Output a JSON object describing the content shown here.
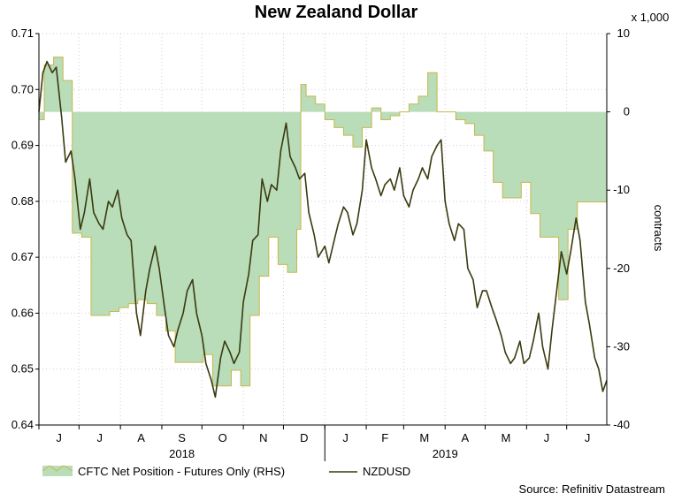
{
  "chart_data": {
    "type": "line",
    "title": "New Zealand Dollar",
    "y_left_ticks": [
      0.64,
      0.65,
      0.66,
      0.67,
      0.68,
      0.69,
      0.7,
      0.71
    ],
    "y_left_labels": [
      "0.64",
      "0.65",
      "0.66",
      "0.67",
      "0.68",
      "0.69",
      "0.70",
      "0.71"
    ],
    "ylim_left": [
      0.64,
      0.71
    ],
    "y_right_ticks": [
      -40,
      -30,
      -20,
      -10,
      0,
      10
    ],
    "y_right_labels": [
      "-40",
      "-30",
      "-20",
      "-10",
      "0",
      "10"
    ],
    "ylim_right": [
      -40,
      10
    ],
    "y_right_unit": "x 1,000",
    "y_right_label": "contracts",
    "x_start": "2018-06-01",
    "x_end": "2019-07-31",
    "month_ticks": [
      "2018-06-01",
      "2018-07-01",
      "2018-08-01",
      "2018-09-01",
      "2018-10-01",
      "2018-11-01",
      "2018-12-01",
      "2019-01-01",
      "2019-02-01",
      "2019-03-01",
      "2019-04-01",
      "2019-05-01",
      "2019-06-01",
      "2019-07-01",
      "2019-08-01"
    ],
    "month_labels": [
      "J",
      "J",
      "A",
      "S",
      "O",
      "N",
      "D",
      "J",
      "F",
      "M",
      "A",
      "M",
      "J",
      "J"
    ],
    "year_labels": [
      {
        "label": "2018",
        "center": "2018-09-16"
      },
      {
        "label": "2019",
        "center": "2019-04-01"
      }
    ],
    "legend": [
      "CFTC Net Position - Futures Only (RHS)",
      "NZDUSD"
    ],
    "source": "Source: Refinitiv Datastream",
    "series": [
      {
        "name": "CFTC Net Position - Futures Only (RHS)",
        "axis": "right",
        "style": "area-step",
        "color": "#b9dcb9",
        "stroke": "#c8b84a",
        "points": [
          [
            "2018-06-01",
            -1
          ],
          [
            "2018-06-05",
            6
          ],
          [
            "2018-06-12",
            7
          ],
          [
            "2018-06-19",
            4
          ],
          [
            "2018-06-26",
            -15.5
          ],
          [
            "2018-07-03",
            -16
          ],
          [
            "2018-07-10",
            -26
          ],
          [
            "2018-07-17",
            -26
          ],
          [
            "2018-07-24",
            -25.5
          ],
          [
            "2018-07-31",
            -25
          ],
          [
            "2018-08-07",
            -24.5
          ],
          [
            "2018-08-14",
            -24
          ],
          [
            "2018-08-21",
            -24.5
          ],
          [
            "2018-08-28",
            -26
          ],
          [
            "2018-09-04",
            -28
          ],
          [
            "2018-09-11",
            -32
          ],
          [
            "2018-09-18",
            -32
          ],
          [
            "2018-09-25",
            -32
          ],
          [
            "2018-10-02",
            -31
          ],
          [
            "2018-10-09",
            -35
          ],
          [
            "2018-10-16",
            -35
          ],
          [
            "2018-10-23",
            -33
          ],
          [
            "2018-10-30",
            -35
          ],
          [
            "2018-11-06",
            -26
          ],
          [
            "2018-11-13",
            -21
          ],
          [
            "2018-11-20",
            -16
          ],
          [
            "2018-11-27",
            -19.5
          ],
          [
            "2018-12-04",
            -20.5
          ],
          [
            "2018-12-11",
            -15
          ],
          [
            "2018-12-14",
            3.5
          ],
          [
            "2018-12-18",
            2
          ],
          [
            "2018-12-25",
            1
          ],
          [
            "2019-01-01",
            -1
          ],
          [
            "2019-01-08",
            -2
          ],
          [
            "2019-01-15",
            -3
          ],
          [
            "2019-01-22",
            -4.5
          ],
          [
            "2019-01-29",
            -2
          ],
          [
            "2019-02-05",
            0.5
          ],
          [
            "2019-02-12",
            -1
          ],
          [
            "2019-02-19",
            -0.5
          ],
          [
            "2019-02-26",
            0
          ],
          [
            "2019-03-05",
            1
          ],
          [
            "2019-03-12",
            2
          ],
          [
            "2019-03-19",
            5
          ],
          [
            "2019-03-26",
            0
          ],
          [
            "2019-04-02",
            0
          ],
          [
            "2019-04-09",
            -1
          ],
          [
            "2019-04-16",
            -1.5
          ],
          [
            "2019-04-23",
            -3
          ],
          [
            "2019-04-30",
            -5
          ],
          [
            "2019-05-07",
            -9
          ],
          [
            "2019-05-14",
            -11
          ],
          [
            "2019-05-21",
            -11
          ],
          [
            "2019-05-28",
            -9
          ],
          [
            "2019-06-04",
            -13
          ],
          [
            "2019-06-11",
            -16
          ],
          [
            "2019-06-18",
            -16
          ],
          [
            "2019-06-25",
            -24
          ],
          [
            "2019-07-02",
            -15
          ],
          [
            "2019-07-09",
            -11.5
          ],
          [
            "2019-07-16",
            -11.5
          ],
          [
            "2019-07-23",
            -11.5
          ],
          [
            "2019-07-31",
            -11
          ]
        ]
      },
      {
        "name": "NZDUSD",
        "axis": "left",
        "style": "line",
        "color": "#3a3a10",
        "points": [
          [
            "2018-06-01",
            0.696
          ],
          [
            "2018-06-04",
            0.703
          ],
          [
            "2018-06-07",
            0.705
          ],
          [
            "2018-06-11",
            0.703
          ],
          [
            "2018-06-14",
            0.704
          ],
          [
            "2018-06-18",
            0.695
          ],
          [
            "2018-06-21",
            0.687
          ],
          [
            "2018-06-25",
            0.689
          ],
          [
            "2018-06-28",
            0.684
          ],
          [
            "2018-07-02",
            0.675
          ],
          [
            "2018-07-05",
            0.678
          ],
          [
            "2018-07-09",
            0.684
          ],
          [
            "2018-07-12",
            0.678
          ],
          [
            "2018-07-16",
            0.676
          ],
          [
            "2018-07-19",
            0.675
          ],
          [
            "2018-07-23",
            0.68
          ],
          [
            "2018-07-26",
            0.679
          ],
          [
            "2018-07-30",
            0.682
          ],
          [
            "2018-08-02",
            0.677
          ],
          [
            "2018-08-06",
            0.674
          ],
          [
            "2018-08-09",
            0.673
          ],
          [
            "2018-08-13",
            0.66
          ],
          [
            "2018-08-16",
            0.656
          ],
          [
            "2018-08-20",
            0.664
          ],
          [
            "2018-08-23",
            0.668
          ],
          [
            "2018-08-27",
            0.672
          ],
          [
            "2018-08-30",
            0.668
          ],
          [
            "2018-09-03",
            0.661
          ],
          [
            "2018-09-06",
            0.656
          ],
          [
            "2018-09-10",
            0.654
          ],
          [
            "2018-09-13",
            0.657
          ],
          [
            "2018-09-17",
            0.66
          ],
          [
            "2018-09-20",
            0.664
          ],
          [
            "2018-09-24",
            0.666
          ],
          [
            "2018-09-27",
            0.66
          ],
          [
            "2018-10-01",
            0.656
          ],
          [
            "2018-10-04",
            0.651
          ],
          [
            "2018-10-08",
            0.648
          ],
          [
            "2018-10-11",
            0.645
          ],
          [
            "2018-10-15",
            0.652
          ],
          [
            "2018-10-18",
            0.655
          ],
          [
            "2018-10-22",
            0.653
          ],
          [
            "2018-10-25",
            0.651
          ],
          [
            "2018-10-29",
            0.653
          ],
          [
            "2018-11-01",
            0.662
          ],
          [
            "2018-11-05",
            0.667
          ],
          [
            "2018-11-08",
            0.673
          ],
          [
            "2018-11-12",
            0.674
          ],
          [
            "2018-11-15",
            0.684
          ],
          [
            "2018-11-19",
            0.68
          ],
          [
            "2018-11-22",
            0.683
          ],
          [
            "2018-11-26",
            0.682
          ],
          [
            "2018-11-29",
            0.689
          ],
          [
            "2018-12-03",
            0.694
          ],
          [
            "2018-12-06",
            0.688
          ],
          [
            "2018-12-10",
            0.686
          ],
          [
            "2018-12-13",
            0.684
          ],
          [
            "2018-12-17",
            0.685
          ],
          [
            "2018-12-20",
            0.678
          ],
          [
            "2018-12-24",
            0.674
          ],
          [
            "2018-12-27",
            0.67
          ],
          [
            "2019-01-01",
            0.672
          ],
          [
            "2019-01-04",
            0.669
          ],
          [
            "2019-01-08",
            0.673
          ],
          [
            "2019-01-11",
            0.676
          ],
          [
            "2019-01-15",
            0.679
          ],
          [
            "2019-01-18",
            0.678
          ],
          [
            "2019-01-22",
            0.674
          ],
          [
            "2019-01-25",
            0.676
          ],
          [
            "2019-01-29",
            0.682
          ],
          [
            "2019-02-01",
            0.691
          ],
          [
            "2019-02-05",
            0.686
          ],
          [
            "2019-02-08",
            0.684
          ],
          [
            "2019-02-12",
            0.681
          ],
          [
            "2019-02-15",
            0.683
          ],
          [
            "2019-02-19",
            0.684
          ],
          [
            "2019-02-22",
            0.682
          ],
          [
            "2019-02-26",
            0.686
          ],
          [
            "2019-03-01",
            0.681
          ],
          [
            "2019-03-05",
            0.679
          ],
          [
            "2019-03-08",
            0.682
          ],
          [
            "2019-03-12",
            0.684
          ],
          [
            "2019-03-15",
            0.686
          ],
          [
            "2019-03-19",
            0.684
          ],
          [
            "2019-03-22",
            0.688
          ],
          [
            "2019-03-26",
            0.69
          ],
          [
            "2019-03-29",
            0.691
          ],
          [
            "2019-04-01",
            0.68
          ],
          [
            "2019-04-04",
            0.676
          ],
          [
            "2019-04-08",
            0.673
          ],
          [
            "2019-04-11",
            0.676
          ],
          [
            "2019-04-15",
            0.675
          ],
          [
            "2019-04-18",
            0.668
          ],
          [
            "2019-04-22",
            0.666
          ],
          [
            "2019-04-25",
            0.661
          ],
          [
            "2019-04-29",
            0.664
          ],
          [
            "2019-05-02",
            0.664
          ],
          [
            "2019-05-06",
            0.661
          ],
          [
            "2019-05-09",
            0.659
          ],
          [
            "2019-05-13",
            0.656
          ],
          [
            "2019-05-16",
            0.653
          ],
          [
            "2019-05-20",
            0.651
          ],
          [
            "2019-05-23",
            0.652
          ],
          [
            "2019-05-27",
            0.655
          ],
          [
            "2019-05-30",
            0.651
          ],
          [
            "2019-06-03",
            0.652
          ],
          [
            "2019-06-06",
            0.655
          ],
          [
            "2019-06-10",
            0.66
          ],
          [
            "2019-06-13",
            0.654
          ],
          [
            "2019-06-17",
            0.65
          ],
          [
            "2019-06-20",
            0.657
          ],
          [
            "2019-06-24",
            0.665
          ],
          [
            "2019-06-27",
            0.671
          ],
          [
            "2019-07-01",
            0.667
          ],
          [
            "2019-07-04",
            0.671
          ],
          [
            "2019-07-08",
            0.677
          ],
          [
            "2019-07-11",
            0.673
          ],
          [
            "2019-07-15",
            0.662
          ],
          [
            "2019-07-18",
            0.658
          ],
          [
            "2019-07-22",
            0.652
          ],
          [
            "2019-07-25",
            0.65
          ],
          [
            "2019-07-28",
            0.646
          ],
          [
            "2019-07-31",
            0.648
          ]
        ]
      }
    ]
  }
}
